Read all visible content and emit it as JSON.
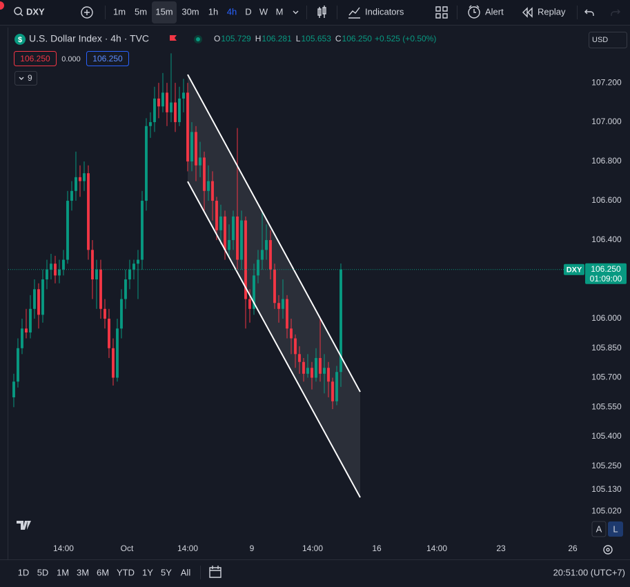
{
  "toolbar": {
    "symbol": "DXY",
    "intervals": [
      "1m",
      "5m",
      "15m",
      "30m",
      "1h",
      "4h",
      "D",
      "W",
      "M"
    ],
    "indicators": "Indicators",
    "alert": "Alert",
    "replay": "Replay"
  },
  "legend": {
    "title": "U.S. Dollar Index · 4h · TVC",
    "o_label": "O",
    "o": "105.729",
    "h_label": "H",
    "h": "106.281",
    "l_label": "L",
    "l": "105.653",
    "c_label": "C",
    "c": "106.250",
    "change": "+0.525 (+0.50%)",
    "sell": "106.250",
    "spread": "0.000",
    "buy": "106.250",
    "indicator_count": "9",
    "currency": "USD"
  },
  "chart_data": {
    "type": "candlestick",
    "up_color": "#089981",
    "down_color": "#f23645",
    "open": [
      105.6,
      105.68,
      105.85,
      105.95,
      105.93,
      106.05,
      106.15,
      106.02,
      106.2,
      106.25,
      106.28,
      106.22,
      106.25,
      106.3,
      106.6,
      106.65,
      106.72,
      106.7,
      106.74,
      106.35,
      106.2,
      106.25,
      106.05,
      106.0,
      105.85,
      105.7,
      105.95,
      106.1,
      106.2,
      106.25,
      106.28,
      106.3,
      106.6,
      106.98,
      107.0,
      107.12,
      107.08,
      107.15,
      107.05,
      107.1,
      107.0,
      107.12,
      107.15,
      106.8,
      106.95,
      106.78,
      106.82,
      106.65,
      106.7,
      106.6,
      106.45,
      106.52,
      106.35,
      106.4,
      106.52,
      106.3,
      106.5,
      106.1,
      106.05,
      106.22,
      106.3,
      106.35,
      106.4,
      106.25,
      106.08,
      106.05,
      106.1,
      105.95,
      105.9,
      105.82,
      105.78,
      105.72,
      105.75,
      105.7,
      105.8,
      105.72,
      105.75,
      105.68,
      105.58,
      105.729
    ],
    "high": [
      105.72,
      105.9,
      106.0,
      106.05,
      106.12,
      106.2,
      106.18,
      106.25,
      106.3,
      106.33,
      106.32,
      106.3,
      106.35,
      106.65,
      106.7,
      106.85,
      106.78,
      106.8,
      106.78,
      106.4,
      106.3,
      106.3,
      106.1,
      106.05,
      105.9,
      106.0,
      106.15,
      106.25,
      106.3,
      106.3,
      106.35,
      106.65,
      107.02,
      107.05,
      107.18,
      107.2,
      107.25,
      107.2,
      107.35,
      107.2,
      107.18,
      107.22,
      107.2,
      107.0,
      106.98,
      106.9,
      106.85,
      106.78,
      106.75,
      106.62,
      106.58,
      106.55,
      106.48,
      106.55,
      106.97,
      106.55,
      106.52,
      106.15,
      106.28,
      106.35,
      106.55,
      106.48,
      106.45,
      106.28,
      106.12,
      106.2,
      106.12,
      106.0,
      105.92,
      105.86,
      105.8,
      105.82,
      105.78,
      105.85,
      106.0,
      105.82,
      105.78,
      105.7,
      105.76,
      106.281
    ],
    "low": [
      105.55,
      105.65,
      105.82,
      105.9,
      105.9,
      106.0,
      105.95,
      105.98,
      106.15,
      106.2,
      106.18,
      106.18,
      106.22,
      106.28,
      106.55,
      106.6,
      106.62,
      106.65,
      106.3,
      106.1,
      106.05,
      106.0,
      105.95,
      105.8,
      105.66,
      105.68,
      105.9,
      106.05,
      106.15,
      106.2,
      106.1,
      106.25,
      106.55,
      106.92,
      106.95,
      107.02,
      107.05,
      106.98,
      107.0,
      106.95,
      106.98,
      107.05,
      106.75,
      106.75,
      106.7,
      106.72,
      106.55,
      106.6,
      106.5,
      106.4,
      106.38,
      106.3,
      106.32,
      106.35,
      106.25,
      106.25,
      105.95,
      105.98,
      106.02,
      106.18,
      106.25,
      106.3,
      106.2,
      106.05,
      105.98,
      106.0,
      105.9,
      105.82,
      105.75,
      105.72,
      105.68,
      105.7,
      105.64,
      105.68,
      105.68,
      105.62,
      105.6,
      105.54,
      105.56,
      105.653
    ],
    "close": [
      105.68,
      105.85,
      105.95,
      105.93,
      106.05,
      106.15,
      106.02,
      106.2,
      106.25,
      106.28,
      106.22,
      106.25,
      106.3,
      106.6,
      106.65,
      106.72,
      106.7,
      106.74,
      106.35,
      106.2,
      106.25,
      106.05,
      106.0,
      105.85,
      105.7,
      105.95,
      106.1,
      106.2,
      106.25,
      106.28,
      106.3,
      106.6,
      106.98,
      107.0,
      107.12,
      107.08,
      107.15,
      107.05,
      107.1,
      107.0,
      107.12,
      107.15,
      106.8,
      106.95,
      106.78,
      106.82,
      106.65,
      106.7,
      106.6,
      106.45,
      106.52,
      106.35,
      106.4,
      106.52,
      106.3,
      106.5,
      106.1,
      106.05,
      106.22,
      106.3,
      106.35,
      106.4,
      106.25,
      106.08,
      106.05,
      106.1,
      105.95,
      105.9,
      105.82,
      105.78,
      105.72,
      105.75,
      105.7,
      105.8,
      105.72,
      105.75,
      105.68,
      105.58,
      105.729,
      106.25
    ],
    "xlim": [
      -1.33,
      138
    ],
    "xticks": [
      {
        "value": 12,
        "label": "14:00"
      },
      {
        "value": 27.33,
        "label": "Oct"
      },
      {
        "value": 42,
        "label": "14:00"
      },
      {
        "value": 57.5,
        "label": "9"
      },
      {
        "value": 72.17,
        "label": "14:00"
      },
      {
        "value": 87.67,
        "label": "16"
      },
      {
        "value": 102.17,
        "label": "14:00"
      },
      {
        "value": 117.67,
        "label": "23"
      },
      {
        "value": 135,
        "label": "26"
      }
    ],
    "ylim": [
      104.779,
      107.474
    ],
    "yticks": [
      {
        "value": 107.2,
        "label": "107.200"
      },
      {
        "value": 107.0,
        "label": "107.000"
      },
      {
        "value": 106.8,
        "label": "106.800"
      },
      {
        "value": 106.6,
        "label": "106.600"
      },
      {
        "value": 106.4,
        "label": "106.400"
      },
      {
        "value": 106.0,
        "label": "106.000"
      },
      {
        "value": 105.85,
        "label": "105.850"
      },
      {
        "value": 105.7,
        "label": "105.700"
      },
      {
        "value": 105.55,
        "label": "105.550"
      },
      {
        "value": 105.4,
        "label": "105.400"
      },
      {
        "value": 105.25,
        "label": "105.250"
      },
      {
        "value": 105.13,
        "label": "105.130"
      },
      {
        "value": 105.02,
        "label": "105.020"
      }
    ],
    "last_price": {
      "value": 106.25,
      "symbol": "DXY",
      "label": "106.250",
      "countdown": "01:09:00"
    },
    "channel": {
      "upper": {
        "x": [
          42,
          83.67
        ],
        "y": [
          107.242,
          105.628
        ]
      },
      "lower": {
        "x": [
          42,
          83.67
        ],
        "y": [
          106.698,
          105.091
        ]
      }
    }
  },
  "bottom_bar": {
    "ranges": [
      "1D",
      "5D",
      "1M",
      "3M",
      "6M",
      "YTD",
      "1Y",
      "5Y",
      "All"
    ],
    "clock": "20:51:00 (UTC+7)",
    "scale_modes": [
      "A",
      "L"
    ]
  }
}
